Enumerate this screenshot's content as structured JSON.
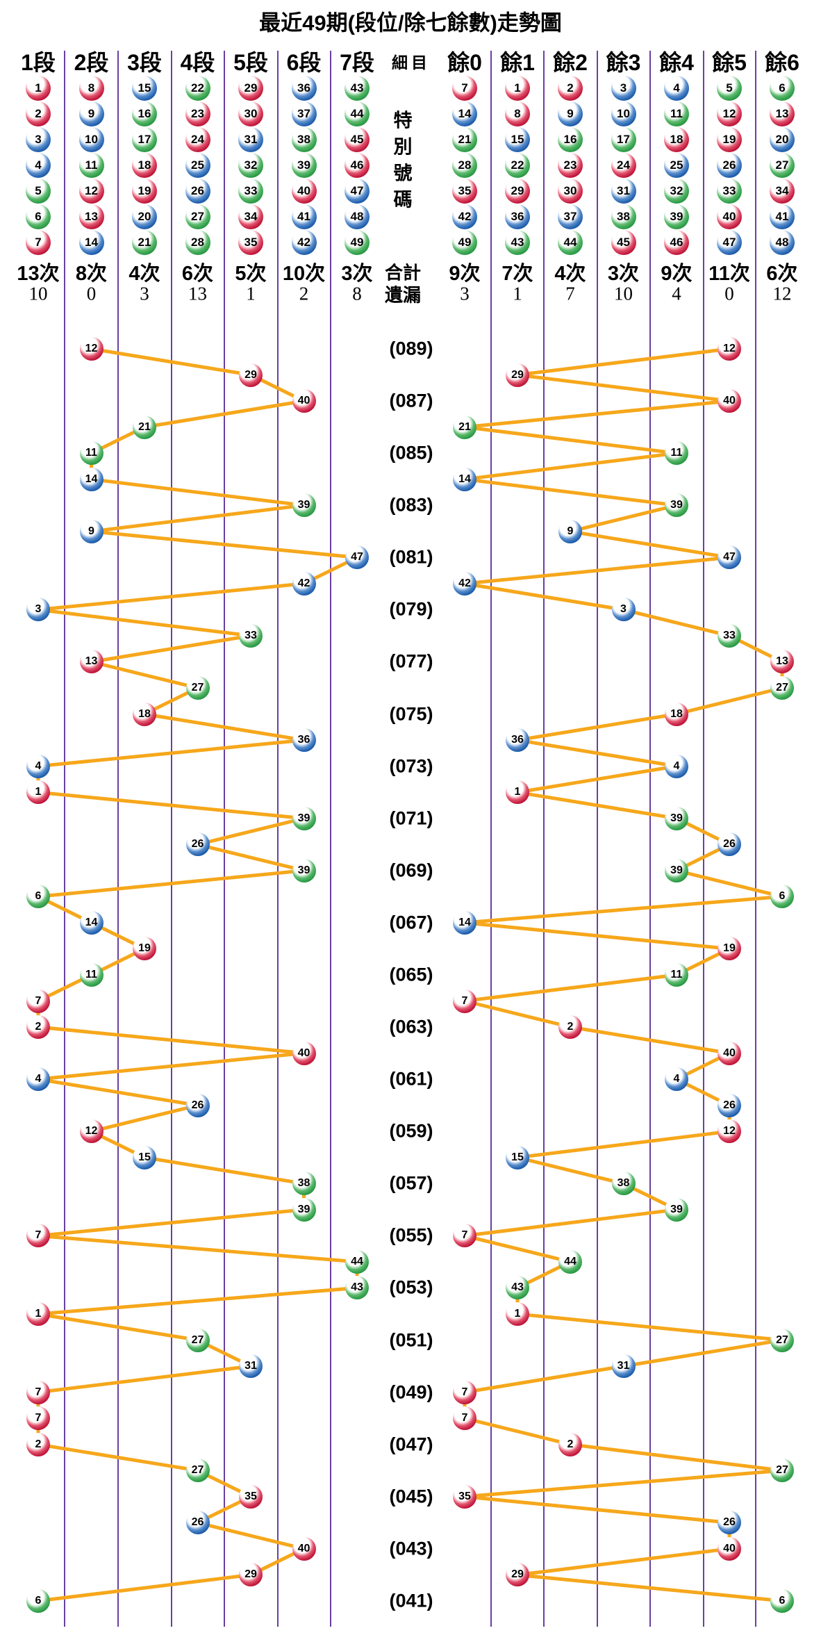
{
  "title": "最近49期(段位/除七餘數)走勢圖",
  "left_section": {
    "columns": [
      {
        "label": "1段",
        "balls": [
          1,
          2,
          3,
          4,
          5,
          6,
          7
        ],
        "count": "13次",
        "missing": "10"
      },
      {
        "label": "2段",
        "balls": [
          8,
          9,
          10,
          11,
          12,
          13,
          14
        ],
        "count": "8次",
        "missing": "0"
      },
      {
        "label": "3段",
        "balls": [
          15,
          16,
          17,
          18,
          19,
          20,
          21
        ],
        "count": "4次",
        "missing": "3"
      },
      {
        "label": "4段",
        "balls": [
          22,
          23,
          24,
          25,
          26,
          27,
          28
        ],
        "count": "6次",
        "missing": "13"
      },
      {
        "label": "5段",
        "balls": [
          29,
          30,
          31,
          32,
          33,
          34,
          35
        ],
        "count": "5次",
        "missing": "1"
      },
      {
        "label": "6段",
        "balls": [
          36,
          37,
          38,
          39,
          40,
          41,
          42
        ],
        "count": "10次",
        "missing": "2"
      },
      {
        "label": "7段",
        "balls": [
          43,
          44,
          45,
          46,
          47,
          48,
          49
        ],
        "count": "3次",
        "missing": "8"
      }
    ]
  },
  "middle": {
    "header": "細目",
    "vertical_label": "特別號碼",
    "total_label": "合計",
    "missing_label": "遺漏",
    "period_labels": [
      "(089)",
      "(087)",
      "(085)",
      "(083)",
      "(081)",
      "(079)",
      "(077)",
      "(075)",
      "(073)",
      "(071)",
      "(069)",
      "(067)",
      "(065)",
      "(063)",
      "(061)",
      "(059)",
      "(057)",
      "(055)",
      "(053)",
      "(051)",
      "(049)",
      "(047)",
      "(045)",
      "(043)",
      "(041)"
    ]
  },
  "right_section": {
    "columns": [
      {
        "label": "餘0",
        "balls": [
          7,
          14,
          21,
          28,
          35,
          42,
          49
        ],
        "count": "9次",
        "missing": "3"
      },
      {
        "label": "餘1",
        "balls": [
          1,
          8,
          15,
          22,
          29,
          36,
          43
        ],
        "count": "7次",
        "missing": "1"
      },
      {
        "label": "餘2",
        "balls": [
          2,
          9,
          16,
          23,
          30,
          37,
          44
        ],
        "count": "4次",
        "missing": "7"
      },
      {
        "label": "餘3",
        "balls": [
          3,
          10,
          17,
          24,
          31,
          38,
          45
        ],
        "count": "3次",
        "missing": "10"
      },
      {
        "label": "餘4",
        "balls": [
          4,
          11,
          18,
          25,
          32,
          39,
          46
        ],
        "count": "9次",
        "missing": "4"
      },
      {
        "label": "餘5",
        "balls": [
          5,
          12,
          19,
          26,
          33,
          40,
          47
        ],
        "count": "11次",
        "missing": "0"
      },
      {
        "label": "餘6",
        "balls": [
          6,
          13,
          20,
          27,
          34,
          41,
          48
        ],
        "count": "6次",
        "missing": "12"
      }
    ]
  },
  "chart_data": {
    "type": "line",
    "title": "最近49期(段位/除七餘數)走勢圖",
    "description": "Special number of each draw plotted twice: left panel by segment column (1段-7段, groups of 7 numbers), right panel by remainder of division by 7 (餘0-餘6). Newest draw (089) at top, oldest (041) at bottom. Consecutive draws joined by orange lines.",
    "series": [
      {
        "name": "段位"
      },
      {
        "name": "除七餘數"
      }
    ],
    "draws": [
      {
        "period": "089",
        "number": 12
      },
      {
        "period": "088",
        "number": 29
      },
      {
        "period": "087",
        "number": 40
      },
      {
        "period": "086",
        "number": 21
      },
      {
        "period": "085",
        "number": 11
      },
      {
        "period": "084",
        "number": 14
      },
      {
        "period": "083",
        "number": 39
      },
      {
        "period": "082",
        "number": 9
      },
      {
        "period": "081",
        "number": 47
      },
      {
        "period": "080",
        "number": 42
      },
      {
        "period": "079",
        "number": 3
      },
      {
        "period": "078",
        "number": 33
      },
      {
        "period": "077",
        "number": 13
      },
      {
        "period": "076",
        "number": 27
      },
      {
        "period": "075",
        "number": 18
      },
      {
        "period": "074",
        "number": 36
      },
      {
        "period": "073",
        "number": 4
      },
      {
        "period": "072",
        "number": 1
      },
      {
        "period": "071",
        "number": 39
      },
      {
        "period": "070",
        "number": 26
      },
      {
        "period": "069",
        "number": 39
      },
      {
        "period": "068",
        "number": 6
      },
      {
        "period": "067",
        "number": 14
      },
      {
        "period": "066",
        "number": 19
      },
      {
        "period": "065",
        "number": 11
      },
      {
        "period": "064",
        "number": 7
      },
      {
        "period": "063",
        "number": 2
      },
      {
        "period": "062",
        "number": 40
      },
      {
        "period": "061",
        "number": 4
      },
      {
        "period": "060",
        "number": 26
      },
      {
        "period": "059",
        "number": 12
      },
      {
        "period": "058",
        "number": 15
      },
      {
        "period": "057",
        "number": 38
      },
      {
        "period": "056",
        "number": 39
      },
      {
        "period": "055",
        "number": 7
      },
      {
        "period": "054",
        "number": 44
      },
      {
        "period": "053",
        "number": 43
      },
      {
        "period": "052",
        "number": 1
      },
      {
        "period": "051",
        "number": 27
      },
      {
        "period": "050",
        "number": 31
      },
      {
        "period": "049",
        "number": 7
      },
      {
        "period": "048",
        "number": 7
      },
      {
        "period": "047",
        "number": 2
      },
      {
        "period": "046",
        "number": 27
      },
      {
        "period": "045",
        "number": 35
      },
      {
        "period": "044",
        "number": 26
      },
      {
        "period": "043",
        "number": 40
      },
      {
        "period": "042",
        "number": 29
      },
      {
        "period": "041",
        "number": 6
      }
    ]
  },
  "ball_colors": {
    "red_numbers": [
      1,
      2,
      7,
      8,
      12,
      13,
      18,
      19,
      23,
      24,
      29,
      30,
      34,
      35,
      40,
      45,
      46
    ],
    "blue_numbers": [
      3,
      4,
      9,
      10,
      14,
      15,
      20,
      25,
      26,
      31,
      36,
      37,
      41,
      42,
      47,
      48
    ],
    "green_numbers": [
      5,
      6,
      11,
      16,
      17,
      21,
      22,
      27,
      28,
      32,
      33,
      38,
      39,
      43,
      44,
      49
    ],
    "red_hex": "#c2183b",
    "blue_hex": "#1f5fae",
    "green_hex": "#2c9c46"
  },
  "line_color": "#f6a71b",
  "grid_color": "#6b3fa0"
}
